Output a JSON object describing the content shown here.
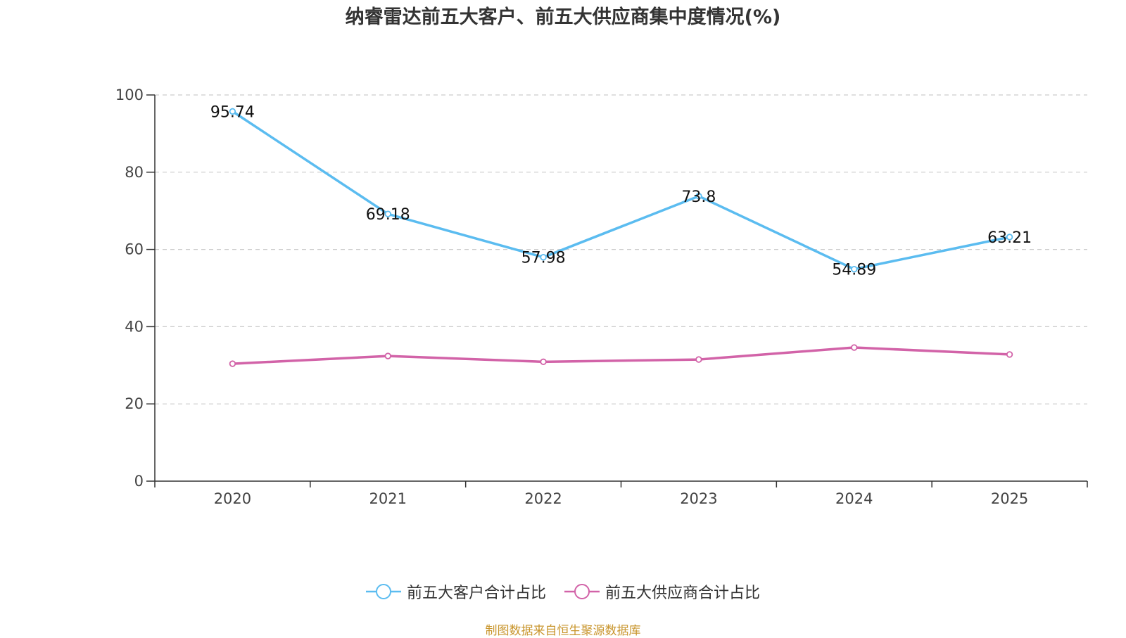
{
  "chart_data": {
    "type": "line",
    "title": "纳睿雷达前五大客户、前五大供应商集中度情况(%)",
    "categories": [
      "2020",
      "2021",
      "2022",
      "2023",
      "2024",
      "2025"
    ],
    "ylim": [
      0,
      100
    ],
    "yticks": [
      0,
      20,
      40,
      60,
      80,
      100
    ],
    "grid": true,
    "legend_position": "bottom-center",
    "series": [
      {
        "name": "前五大客户合计占比",
        "color": "#5bbcf0",
        "values": [
          95.74,
          69.18,
          57.98,
          73.8,
          54.89,
          63.21
        ],
        "show_labels": true,
        "labels": [
          "95.74",
          "69.18",
          "57.98",
          "73.8",
          "54.89",
          "63.21"
        ]
      },
      {
        "name": "前五大供应商合计占比",
        "color": "#d263a8",
        "values": [
          30.4,
          32.4,
          30.9,
          31.5,
          34.6,
          32.8
        ],
        "show_labels": false
      }
    ],
    "source": "制图数据来自恒生聚源数据库"
  }
}
